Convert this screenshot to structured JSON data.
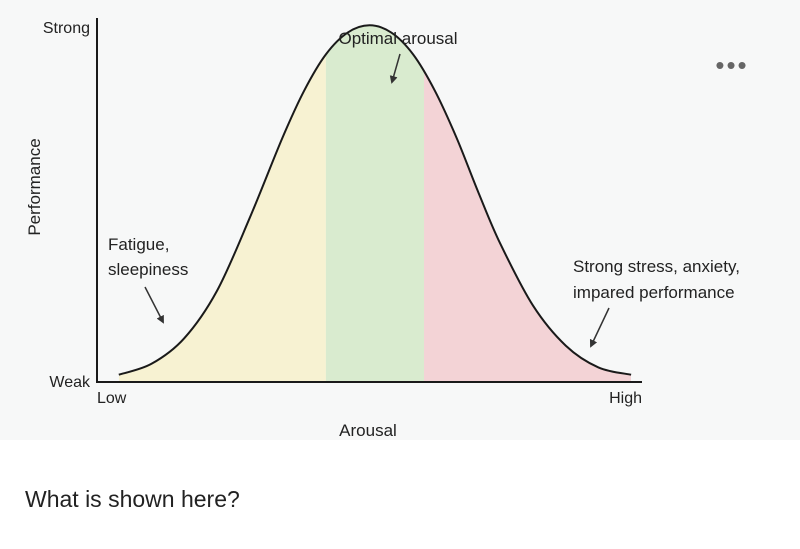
{
  "chart_data": {
    "type": "area",
    "title": "",
    "xlabel": "Arousal",
    "ylabel": "Performance",
    "x_tick_labels": [
      "Low",
      "High"
    ],
    "y_tick_labels": [
      "Weak",
      "Strong"
    ],
    "xlim": [
      0,
      1
    ],
    "ylim": [
      0,
      1
    ],
    "grid": false,
    "legend": "none",
    "series": [
      {
        "x": [
          0.04,
          0.1,
          0.16,
          0.22,
          0.28,
          0.34,
          0.38,
          0.42,
          0.46,
          0.5,
          0.54,
          0.58,
          0.62,
          0.66,
          0.7,
          0.74,
          0.8,
          0.86,
          0.92,
          0.98
        ],
        "y": [
          0.02,
          0.05,
          0.12,
          0.25,
          0.45,
          0.67,
          0.8,
          0.9,
          0.96,
          0.98,
          0.96,
          0.9,
          0.8,
          0.67,
          0.52,
          0.38,
          0.21,
          0.1,
          0.04,
          0.02
        ]
      }
    ],
    "regions": [
      {
        "name": "fatigue",
        "x_range": [
          0.04,
          0.42
        ],
        "color": "#f7f2d2"
      },
      {
        "name": "optimal",
        "x_range": [
          0.42,
          0.6
        ],
        "color": "#d9ebcf"
      },
      {
        "name": "stress",
        "x_range": [
          0.6,
          0.98
        ],
        "color": "#f3d3d6"
      }
    ],
    "annotations": [
      {
        "text": "Optimal arousal"
      },
      {
        "text_lines": [
          "Fatigue,",
          "sleepiness"
        ]
      },
      {
        "text_lines": [
          "Strong stress, anxiety,",
          "impared performance"
        ]
      }
    ]
  },
  "more_label": "•••",
  "question": "What is shown here?"
}
